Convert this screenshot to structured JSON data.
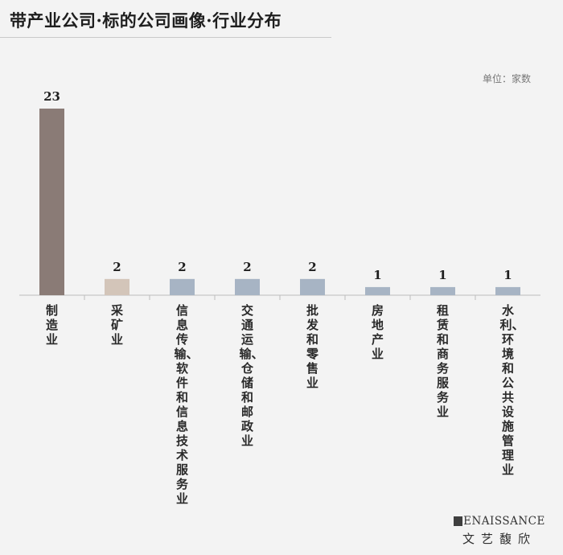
{
  "header": {
    "title": "带产业公司·标的公司画像·行业分布"
  },
  "unit_label": "单位：家数",
  "chart_data": {
    "type": "bar",
    "title": "带产业公司·标的公司画像·行业分布",
    "ylabel": "单位：家数",
    "xlabel": "",
    "categories": [
      "制造业",
      "采矿业",
      "信息传输、软件和信息技术服务业",
      "交通运输、仓储和邮政业",
      "批发和零售业",
      "房地产业",
      "租赁和商务服务业",
      "水利、环境和公共设施管理业"
    ],
    "values": [
      23,
      2,
      2,
      2,
      2,
      1,
      1,
      1
    ],
    "colors": [
      "#8a7b76",
      "#d3c5b9",
      "#a7b4c4",
      "#a7b4c4",
      "#a7b4c4",
      "#a7b4c4",
      "#a7b4c4",
      "#a7b4c4"
    ],
    "ylim": [
      0,
      23
    ],
    "grid": false,
    "legend": "none"
  },
  "brand": {
    "en": "ENAISSANCE",
    "cn": "文艺馥欣"
  }
}
